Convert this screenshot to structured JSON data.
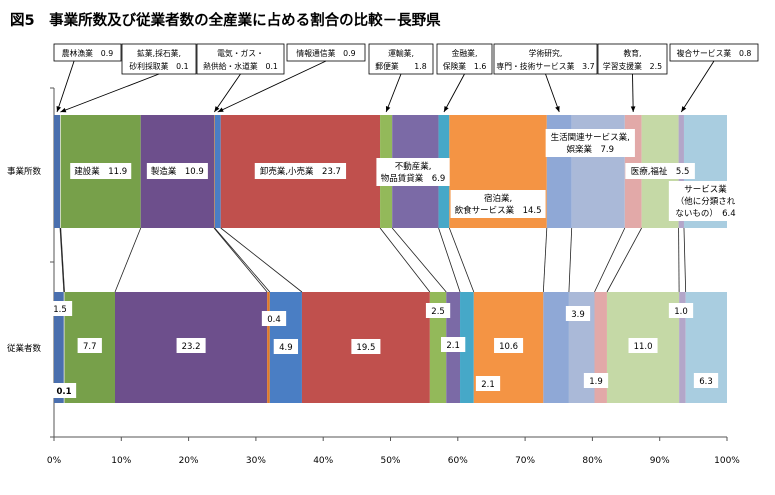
{
  "chart_data": {
    "type": "bar",
    "orientation": "horizontal-stacked-100",
    "title": "図5　事業所数及び従業者数の全産業に占める割合の比較－長野県",
    "categories": [
      "事業所数",
      "従業者数"
    ],
    "x_ticks": [
      "0%",
      "10%",
      "20%",
      "30%",
      "40%",
      "50%",
      "60%",
      "70%",
      "80%",
      "90%",
      "100%"
    ],
    "xlim": [
      0,
      100
    ],
    "grid": false,
    "series": [
      {
        "name": "農林漁業",
        "color": "#4a6fae",
        "values": [
          0.9,
          1.5
        ],
        "box_lines": [
          "農林漁業　0.9"
        ],
        "emp_label": "1.5"
      },
      {
        "name": "鉱業,採石業,砂利採取業",
        "color": "#e9e9e9",
        "values": [
          0.1,
          0.1
        ],
        "box_lines": [
          "鉱業,採石業,",
          "砂利採取業　0.1"
        ],
        "emp_label": "0.1"
      },
      {
        "name": "建設業",
        "color": "#77a04a",
        "values": [
          11.9,
          7.7
        ],
        "est_label": "建設業　11.9",
        "emp_label": "7.7"
      },
      {
        "name": "製造業",
        "color": "#6d4f8c",
        "values": [
          10.9,
          23.2
        ],
        "est_label": "製造業　10.9",
        "emp_label": "23.2"
      },
      {
        "name": "電気・ガス・熱供給・水道業",
        "color": "#e07a27",
        "values": [
          0.1,
          0.4
        ],
        "box_lines": [
          "電気・ガス・",
          "熱供給・水道業　0.1"
        ],
        "emp_label": "0.4"
      },
      {
        "name": "情報通信業",
        "color": "#4a7ec4",
        "values": [
          0.9,
          4.9
        ],
        "box_lines": [
          "情報通信業　0.9"
        ],
        "emp_label": "4.9"
      },
      {
        "name": "卸売業,小売業",
        "color": "#c0504d",
        "values": [
          23.7,
          19.5
        ],
        "est_label": "卸売業,小売業　23.7",
        "emp_label": "19.5"
      },
      {
        "name": "運輸業,郵便業",
        "color": "#93b95a",
        "values": [
          1.8,
          2.5
        ],
        "box_lines": [
          "運輸業,",
          "郵便業　　1.8"
        ],
        "emp_label": "2.5"
      },
      {
        "name": "不動産業,物品賃貸業",
        "color": "#7b6aa6",
        "values": [
          6.9,
          2.1
        ],
        "est_lines": [
          "不動産業,",
          "物品賃貸業　6.9"
        ],
        "emp_label": "2.1"
      },
      {
        "name": "金融業,保険業",
        "color": "#46a8c8",
        "values": [
          1.6,
          2.1
        ],
        "box_lines": [
          "金融業,",
          "保険業　1.6"
        ],
        "emp_label": "2.1"
      },
      {
        "name": "宿泊業,飲食サービス業",
        "color": "#f49444",
        "values": [
          14.5,
          10.6
        ],
        "est_lines": [
          "宿泊業,",
          "飲食サービス業　14.5"
        ],
        "emp_label": "10.6"
      },
      {
        "name": "学術研究,専門・技術サービス業",
        "color": "#8fa8d6",
        "values": [
          3.7,
          3.9
        ],
        "box_lines": [
          "学術研究,",
          "専門・技術サービス業　3.7"
        ],
        "emp_label": "3.9"
      },
      {
        "name": "生活関連サービス業,娯楽業",
        "color": "#aab9d8",
        "values": [
          7.9,
          3.9
        ],
        "est_lines": [
          "生活関連サービス業,",
          "娯楽業　7.9"
        ],
        "emp_label": ""
      },
      {
        "name": "教育,学習支援業",
        "color": "#e2a9a8",
        "values": [
          2.5,
          1.9
        ],
        "box_lines": [
          "教育,",
          "学習支援業　2.5"
        ],
        "emp_label": "1.9"
      },
      {
        "name": "医療,福祉",
        "color": "#c5d9a6",
        "values": [
          5.5,
          11.0
        ],
        "est_label": "医療,福祉　5.5",
        "emp_label": "11.0"
      },
      {
        "name": "複合サービス業",
        "color": "#b3a6c9",
        "values": [
          0.8,
          1.0
        ],
        "box_lines": [
          "複合サービス業　0.8"
        ],
        "emp_label": "1.0"
      },
      {
        "name": "サービス業（他に分類されないもの）",
        "color": "#a9cde0",
        "values": [
          6.4,
          6.3
        ],
        "est_lines": [
          "サービス業",
          "（他に分類され",
          "ないもの）　6.4"
        ],
        "emp_label": "6.3"
      }
    ]
  }
}
